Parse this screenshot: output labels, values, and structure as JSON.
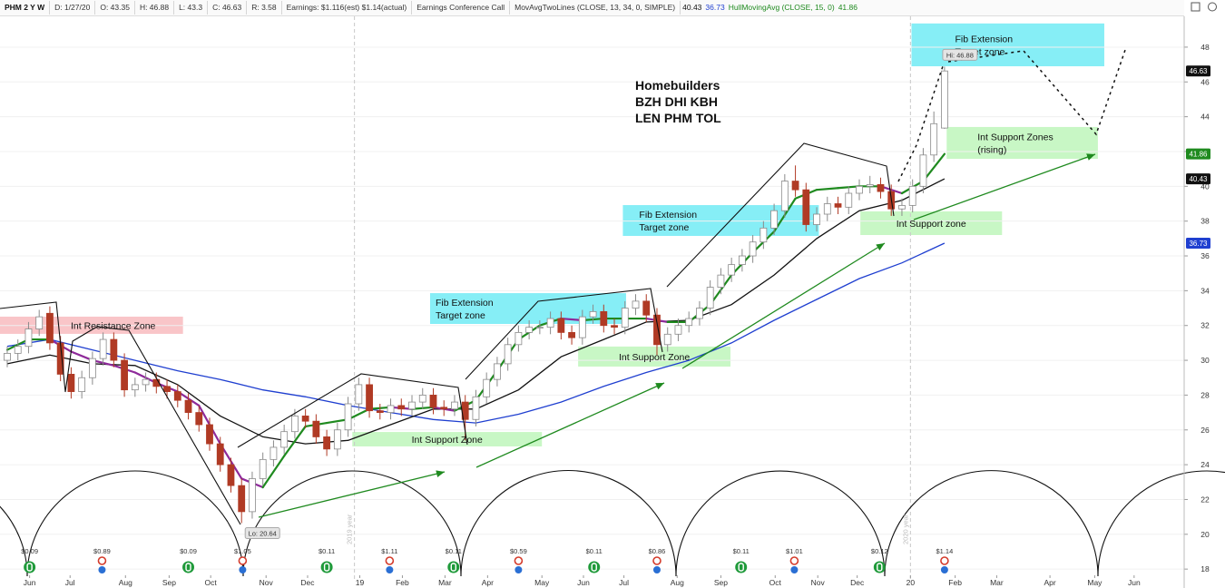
{
  "chart_data": {
    "type": "candlestick",
    "header": [
      {
        "text": "PHM 2 Y W",
        "color": "#111111"
      },
      {
        "text": "D: 1/27/20",
        "color": "#333333"
      },
      {
        "text": "O: 43.35",
        "color": "#333333"
      },
      {
        "text": "H: 46.88",
        "color": "#333333"
      },
      {
        "text": "L: 43.3",
        "color": "#333333"
      },
      {
        "text": "C: 46.63",
        "color": "#333333"
      },
      {
        "text": "R: 3.58",
        "color": "#333333"
      },
      {
        "text": "Earnings: $1.116(est) $1.14(actual)",
        "color": "#333333"
      },
      {
        "text": "Earnings Conference Call",
        "color": "#333333"
      },
      {
        "text": "MovAvgTwoLines (CLOSE, 13, 34, 0, SIMPLE)",
        "color": "#333333"
      },
      {
        "text": "40.43",
        "color": "#111111"
      },
      {
        "text": "36.73",
        "color": "#1f3fd0"
      },
      {
        "text": "HullMovingAvg (CLOSE, 15, 0)",
        "color": "#1f8a1f"
      },
      {
        "text": "41.86",
        "color": "#1f8a1f"
      }
    ],
    "xlim": [
      -0.68,
      110.5
    ],
    "xticks": [
      {
        "value": 2.1,
        "label": "Jun"
      },
      {
        "value": 5.9,
        "label": "Jul"
      },
      {
        "value": 11.1,
        "label": "Aug"
      },
      {
        "value": 15.2,
        "label": "Sep"
      },
      {
        "value": 19.1,
        "label": "Oct"
      },
      {
        "value": 24.3,
        "label": "Nov"
      },
      {
        "value": 28.2,
        "label": "Dec"
      },
      {
        "value": 33.1,
        "label": "19"
      },
      {
        "value": 37.1,
        "label": "Feb"
      },
      {
        "value": 41.1,
        "label": "Mar"
      },
      {
        "value": 45.1,
        "label": "Apr"
      },
      {
        "value": 50.2,
        "label": "May"
      },
      {
        "value": 54.1,
        "label": "Jun"
      },
      {
        "value": 57.9,
        "label": "Jul"
      },
      {
        "value": 62.9,
        "label": "Aug"
      },
      {
        "value": 67.0,
        "label": "Sep"
      },
      {
        "value": 72.1,
        "label": "Oct"
      },
      {
        "value": 76.1,
        "label": "Nov"
      },
      {
        "value": 79.8,
        "label": "Dec"
      },
      {
        "value": 84.8,
        "label": "20"
      },
      {
        "value": 89.0,
        "label": "Feb"
      },
      {
        "value": 92.9,
        "label": "Mar"
      },
      {
        "value": 97.9,
        "label": "Apr"
      },
      {
        "value": 102.1,
        "label": "May"
      },
      {
        "value": 105.8,
        "label": "Jun"
      }
    ],
    "ylim": [
      17.33,
      49.77
    ],
    "yticks": [
      18,
      20,
      22,
      24,
      26,
      28,
      30,
      32,
      34,
      36,
      38,
      40,
      42,
      44,
      46,
      48
    ],
    "grid": true,
    "candles": {
      "up_color": "#ffffff",
      "up_edge": "#8a8a8a",
      "down_color": "#b03a24",
      "open": [
        30.0,
        30.4,
        30.8,
        31.8,
        32.7,
        31.0,
        29.2,
        28.2,
        29.0,
        30.1,
        31.2,
        30.0,
        28.3,
        28.6,
        28.9,
        28.5,
        28.2,
        27.7,
        27.0,
        26.3,
        25.2,
        24.0,
        22.8,
        21.3,
        23.2,
        24.3,
        25.0,
        25.9,
        26.8,
        26.5,
        25.6,
        24.9,
        26.0,
        27.5,
        28.6,
        27.1,
        27.0,
        27.4,
        27.2,
        27.6,
        28.0,
        27.3,
        27.2,
        27.6,
        26.6,
        27.9,
        28.9,
        29.8,
        30.9,
        31.6,
        31.9,
        31.9,
        32.4,
        31.6,
        31.3,
        32.5,
        32.8,
        32.0,
        31.9,
        33.0,
        33.4,
        32.6,
        30.9,
        31.5,
        32.0,
        32.4,
        33.0,
        34.2,
        34.9,
        35.5,
        36.0,
        36.8,
        37.6,
        38.6,
        40.3,
        39.8,
        37.8,
        38.4,
        39.0,
        38.8,
        39.6,
        40.0,
        40.1,
        39.7,
        38.7,
        38.9,
        40.0,
        41.8,
        43.35
      ],
      "high": [
        30.8,
        31.2,
        32.2,
        32.9,
        33.1,
        31.4,
        29.6,
        29.4,
        30.5,
        31.6,
        31.6,
        30.4,
        29.0,
        29.3,
        29.3,
        28.9,
        28.6,
        28.1,
        27.4,
        26.7,
        25.6,
        24.4,
        23.2,
        23.6,
        24.7,
        25.4,
        26.3,
        27.2,
        27.2,
        26.9,
        26.0,
        26.4,
        27.9,
        29.0,
        29.0,
        27.5,
        27.8,
        27.8,
        28.0,
        28.4,
        28.4,
        27.7,
        28.0,
        28.0,
        28.3,
        29.3,
        30.2,
        31.3,
        32.0,
        32.3,
        32.3,
        32.8,
        32.8,
        32.0,
        32.9,
        33.2,
        33.2,
        32.4,
        33.4,
        33.8,
        33.8,
        33.0,
        31.9,
        32.4,
        32.8,
        33.4,
        34.6,
        35.3,
        35.9,
        36.4,
        37.2,
        38.0,
        39.0,
        40.7,
        41.2,
        40.2,
        38.8,
        39.4,
        39.4,
        40.0,
        40.4,
        40.6,
        40.5,
        40.1,
        39.3,
        40.4,
        42.2,
        44.3,
        46.88
      ],
      "low": [
        29.6,
        30.0,
        30.4,
        31.4,
        30.6,
        28.8,
        27.8,
        27.8,
        28.6,
        29.7,
        29.6,
        27.9,
        27.9,
        28.2,
        28.1,
        27.8,
        27.3,
        26.6,
        25.9,
        24.8,
        23.6,
        22.4,
        20.64,
        20.9,
        22.8,
        23.9,
        24.6,
        25.5,
        26.1,
        25.2,
        24.5,
        24.5,
        25.6,
        27.1,
        26.7,
        26.6,
        26.6,
        26.8,
        26.8,
        27.2,
        26.9,
        26.8,
        26.8,
        25.4,
        26.2,
        27.5,
        28.5,
        29.4,
        30.5,
        31.2,
        31.5,
        31.5,
        31.2,
        30.9,
        30.9,
        32.1,
        31.6,
        31.5,
        31.5,
        32.6,
        32.2,
        30.3,
        30.5,
        31.1,
        31.6,
        32.0,
        32.6,
        33.8,
        34.5,
        35.1,
        35.6,
        36.4,
        37.2,
        38.2,
        39.4,
        37.4,
        37.4,
        38.0,
        38.4,
        38.4,
        39.2,
        39.6,
        39.3,
        38.3,
        38.3,
        38.5,
        39.6,
        41.4,
        43.3
      ],
      "close": [
        30.4,
        30.8,
        31.8,
        32.5,
        31.0,
        29.2,
        28.2,
        29.0,
        30.1,
        31.2,
        30.0,
        28.3,
        28.6,
        28.9,
        28.5,
        28.2,
        27.7,
        27.0,
        26.3,
        25.2,
        24.0,
        22.8,
        21.3,
        23.2,
        24.3,
        25.0,
        25.9,
        26.8,
        26.5,
        25.6,
        24.9,
        26.0,
        27.5,
        28.6,
        27.1,
        27.0,
        27.4,
        27.2,
        27.6,
        28.0,
        27.3,
        27.2,
        27.6,
        26.6,
        27.9,
        28.9,
        29.8,
        30.9,
        31.6,
        31.9,
        31.9,
        32.4,
        31.6,
        31.3,
        32.5,
        32.8,
        32.0,
        31.9,
        33.0,
        33.4,
        32.6,
        30.9,
        31.5,
        32.0,
        32.4,
        33.0,
        34.2,
        34.9,
        35.5,
        36.0,
        36.8,
        37.6,
        38.6,
        40.3,
        39.8,
        37.8,
        38.4,
        39.0,
        38.8,
        39.6,
        40.0,
        40.1,
        39.7,
        38.7,
        38.9,
        40.0,
        41.8,
        43.6,
        46.63
      ]
    },
    "lines": [
      {
        "color": "#1f3fd0",
        "x": [
          0,
          4,
          8,
          12,
          16,
          20,
          24,
          28,
          32,
          36,
          40,
          44,
          48,
          52,
          56,
          60,
          64,
          68,
          72,
          76,
          80,
          84,
          88
        ],
        "values": [
          30.8,
          31.2,
          30.6,
          30.0,
          29.4,
          28.9,
          28.3,
          27.9,
          27.4,
          27.0,
          26.6,
          26.4,
          26.9,
          27.6,
          28.5,
          29.3,
          30.0,
          31.0,
          32.3,
          33.5,
          34.7,
          35.6,
          36.73
        ]
      },
      {
        "color": "#111111",
        "x": [
          0,
          4,
          8,
          12,
          16,
          20,
          24,
          28,
          32,
          36,
          40,
          44,
          48,
          52,
          56,
          60,
          64,
          68,
          72,
          76,
          80,
          84,
          88
        ],
        "values": [
          29.8,
          30.3,
          29.8,
          29.7,
          28.6,
          26.8,
          25.6,
          25.2,
          25.4,
          26.3,
          27.2,
          27.2,
          28.3,
          30.2,
          31.2,
          32.2,
          32.3,
          33.2,
          34.9,
          37.0,
          38.6,
          39.2,
          40.43
        ]
      },
      {
        "color": "#1f8a1f",
        "fall_color": "#8e2a9a",
        "x": [
          0,
          2,
          4,
          6,
          8,
          10,
          12,
          14,
          16,
          18,
          20,
          22,
          24,
          26,
          28,
          30,
          32,
          34,
          36,
          38,
          40,
          42,
          44,
          46,
          48,
          50,
          52,
          54,
          56,
          58,
          60,
          62,
          64,
          66,
          68,
          70,
          72,
          74,
          76,
          78,
          80,
          82,
          84,
          86,
          88
        ],
        "values": [
          30.6,
          31.2,
          31.2,
          30.5,
          30.0,
          29.7,
          29.3,
          28.7,
          28.2,
          27.4,
          25.2,
          23.2,
          22.7,
          24.5,
          26.2,
          26.4,
          26.6,
          27.2,
          27.3,
          27.2,
          27.3,
          27.1,
          27.7,
          29.4,
          31.2,
          32.0,
          32.4,
          32.3,
          32.4,
          32.4,
          32.4,
          32.2,
          32.2,
          33.2,
          34.9,
          36.2,
          37.4,
          39.3,
          39.8,
          39.9,
          40.0,
          40.0,
          39.6,
          40.3,
          41.86
        ]
      }
    ],
    "price_tags": [
      {
        "value": 46.63,
        "color": "#111111"
      },
      {
        "value": 41.86,
        "color": "#1f8a1f"
      },
      {
        "value": 40.43,
        "color": "#111111"
      },
      {
        "value": 36.73,
        "color": "#1f3fd0"
      }
    ],
    "zones": [
      {
        "text": [
          "Int Resistance Zone"
        ],
        "x": [
          -0.68,
          16.5
        ],
        "y": [
          31.52,
          32.51
        ],
        "color": "#f9c5c8"
      },
      {
        "text": [
          "Int Support Zone"
        ],
        "x": [
          32.4,
          50.2
        ],
        "y": [
          25.05,
          25.88
        ],
        "color": "#c8f7c5"
      },
      {
        "text": [
          "Fib Extension",
          "Target zone"
        ],
        "x": [
          39.7,
          58.1
        ],
        "y": [
          32.09,
          33.86
        ],
        "color": "#86eef6"
      },
      {
        "text": [
          "Int Support Zone"
        ],
        "x": [
          53.6,
          67.9
        ],
        "y": [
          29.64,
          30.79
        ],
        "color": "#c8f7c5"
      },
      {
        "text": [
          "Fib Extension",
          "Target zone"
        ],
        "x": [
          57.8,
          76.2
        ],
        "y": [
          37.15,
          38.92
        ],
        "color": "#86eef6"
      },
      {
        "text": [
          "Int Support zone"
        ],
        "x": [
          80.1,
          93.4
        ],
        "y": [
          37.2,
          38.56
        ],
        "color": "#c8f7c5"
      },
      {
        "text": [
          "Fib Extension",
          "Target zone"
        ],
        "x": [
          84.9,
          103.0
        ],
        "y": [
          46.9,
          49.36
        ],
        "color": "#86eef6"
      },
      {
        "text": [
          "Int Support Zones",
          "(rising)"
        ],
        "x": [
          88.2,
          102.4
        ],
        "y": [
          41.58,
          43.41
        ],
        "color": "#c8f7c5"
      }
    ],
    "notes": [
      "Homebuilders",
      "BZH DHI KBH",
      "LEN PHM TOL"
    ],
    "hi_label": "Hi: 46.88",
    "lo_label": "Lo: 20.64",
    "year_lines": [
      {
        "x": 32.6,
        "label": "2019 year"
      },
      {
        "x": 84.8,
        "label": "2020 year"
      }
    ],
    "events": [
      {
        "x": 2.1,
        "label": "$0.09",
        "kind": "dividend"
      },
      {
        "x": 8.9,
        "label": "$0.89",
        "kind": "earnings"
      },
      {
        "x": 17.0,
        "label": "$0.09",
        "kind": "dividend"
      },
      {
        "x": 22.1,
        "label": "$1.05",
        "kind": "earnings"
      },
      {
        "x": 30.0,
        "label": "$0.11",
        "kind": "dividend"
      },
      {
        "x": 35.9,
        "label": "$1.11",
        "kind": "earnings"
      },
      {
        "x": 41.9,
        "label": "$0.11",
        "kind": "dividend"
      },
      {
        "x": 48.0,
        "label": "$0.59",
        "kind": "earnings"
      },
      {
        "x": 55.1,
        "label": "$0.11",
        "kind": "dividend"
      },
      {
        "x": 61.0,
        "label": "$0.86",
        "kind": "earnings"
      },
      {
        "x": 68.9,
        "label": "$0.11",
        "kind": "dividend"
      },
      {
        "x": 73.9,
        "label": "$1.01",
        "kind": "earnings"
      },
      {
        "x": 81.9,
        "label": "$0.12",
        "kind": "dividend"
      },
      {
        "x": 88.0,
        "label": "$1.14",
        "kind": "earnings"
      }
    ]
  }
}
